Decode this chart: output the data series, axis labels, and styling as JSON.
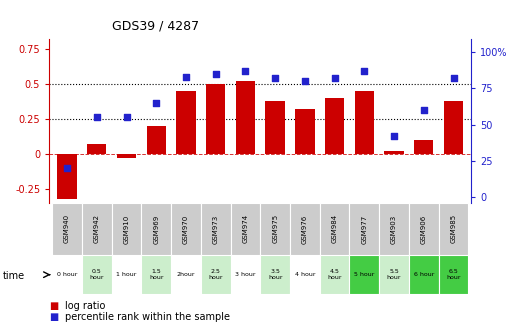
{
  "title": "GDS39 / 4287",
  "samples": [
    "GSM940",
    "GSM942",
    "GSM910",
    "GSM969",
    "GSM970",
    "GSM973",
    "GSM974",
    "GSM975",
    "GSM976",
    "GSM984",
    "GSM977",
    "GSM903",
    "GSM906",
    "GSM985"
  ],
  "time_labels": [
    "0 hour",
    "0.5\nhour",
    "1 hour",
    "1.5\nhour",
    "2hour",
    "2.5\nhour",
    "3 hour",
    "3.5\nhour",
    "4 hour",
    "4.5\nhour",
    "5 hour",
    "5.5\nhour",
    "6 hour",
    "6.5\nhour"
  ],
  "log_ratio": [
    -0.32,
    0.07,
    -0.03,
    0.2,
    0.45,
    0.5,
    0.52,
    0.38,
    0.32,
    0.4,
    0.45,
    0.02,
    0.1,
    0.38
  ],
  "percentile": [
    20,
    55,
    55,
    65,
    83,
    85,
    87,
    82,
    80,
    82,
    87,
    42,
    60,
    82
  ],
  "bar_color": "#cc0000",
  "dot_color": "#2222cc",
  "ylim_left": [
    -0.35,
    0.82
  ],
  "ylim_right": [
    -4,
    109
  ],
  "yticks_left": [
    -0.25,
    0.0,
    0.25,
    0.5,
    0.75
  ],
  "yticks_right": [
    0,
    25,
    50,
    75,
    100
  ],
  "ytick_labels_left": [
    "-0.25",
    "0",
    "0.25",
    "0.5",
    "0.75"
  ],
  "ytick_labels_right": [
    "0",
    "25",
    "50",
    "75",
    "100%"
  ],
  "hlines": [
    0.25,
    0.5
  ],
  "time_colors": [
    "#ffffff",
    "#cceecc",
    "#ffffff",
    "#cceecc",
    "#ffffff",
    "#cceecc",
    "#ffffff",
    "#cceecc",
    "#ffffff",
    "#cceecc",
    "#44cc44",
    "#cceecc",
    "#44cc44",
    "#44cc44"
  ],
  "gsm_bg": "#cccccc",
  "legend_red": "log ratio",
  "legend_blue": "percentile rank within the sample"
}
